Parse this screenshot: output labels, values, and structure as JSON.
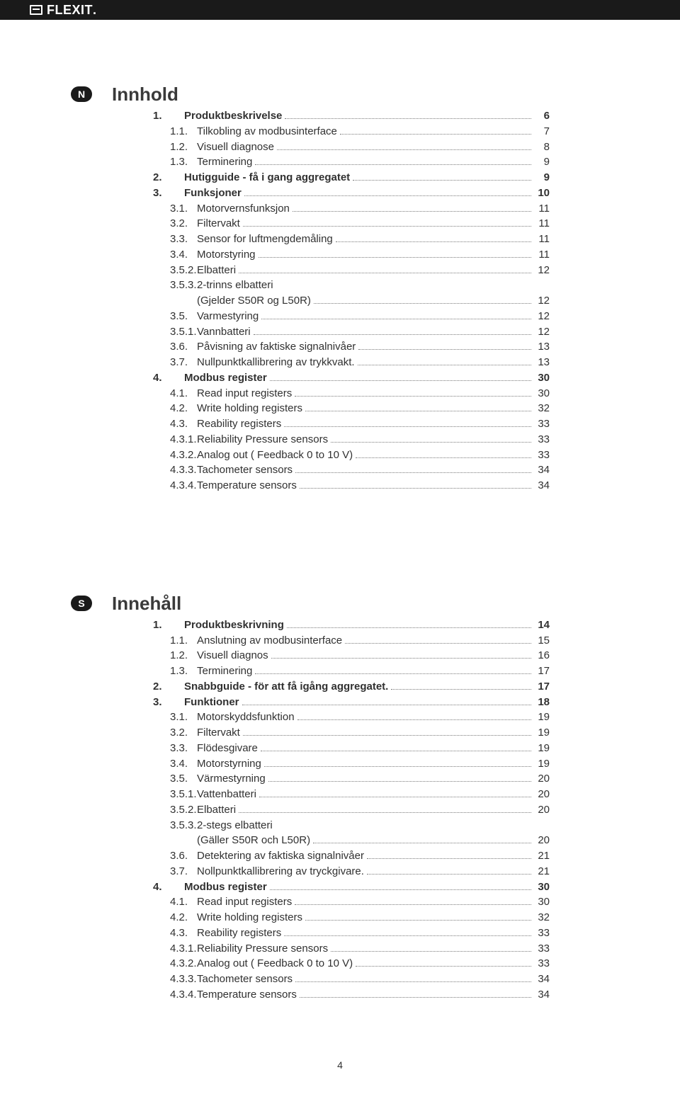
{
  "brand": "FLEXIT",
  "page_number": "4",
  "colors": {
    "bg": "#ffffff",
    "text": "#1a1a1a",
    "header_bg": "#1a1a1a",
    "header_fg": "#ffffff",
    "dot": "#7a7a7a"
  },
  "tocs": [
    {
      "badge": "N",
      "title": "Innhold",
      "entries": [
        {
          "lvl": 1,
          "num": "1.",
          "label": "Produktbeskrivelse",
          "pg": "6"
        },
        {
          "lvl": 2,
          "num": "1.1.",
          "label": "Tilkobling av modbusinterface",
          "pg": "7"
        },
        {
          "lvl": 2,
          "num": "1.2.",
          "label": "Visuell diagnose",
          "pg": "8"
        },
        {
          "lvl": 2,
          "num": "1.3.",
          "label": "Terminering",
          "pg": "9"
        },
        {
          "lvl": 1,
          "num": "2.",
          "label": "Hutigguide - få i gang aggregatet",
          "pg": "9"
        },
        {
          "lvl": 1,
          "num": "3.",
          "label": "Funksjoner",
          "pg": "10"
        },
        {
          "lvl": 2,
          "num": "3.1.",
          "label": "Motorvernsfunksjon",
          "pg": "11"
        },
        {
          "lvl": 2,
          "num": "3.2.",
          "label": "Filtervakt",
          "pg": "11"
        },
        {
          "lvl": 2,
          "num": "3.3.",
          "label": "Sensor for luftmengdemåling",
          "pg": "11"
        },
        {
          "lvl": 2,
          "num": "3.4.",
          "label": "Motorstyring",
          "pg": "11"
        },
        {
          "lvl": 2,
          "num": "3.5.2.",
          "label": "Elbatteri",
          "pg": "12"
        },
        {
          "lvl": 2,
          "num": "3.5.3.",
          "label": "2-trinns elbatteri",
          "cont": true
        },
        {
          "lvl": 2,
          "num": "",
          "label": "(Gjelder S50R og L50R)",
          "pg": "12",
          "contEnd": true
        },
        {
          "lvl": 2,
          "num": "3.5.",
          "label": "Varmestyring",
          "pg": "12"
        },
        {
          "lvl": 2,
          "num": "3.5.1.",
          "label": "Vannbatteri",
          "pg": "12"
        },
        {
          "lvl": 2,
          "num": "3.6.",
          "label": "Påvisning av faktiske signalnivåer",
          "pg": "13"
        },
        {
          "lvl": 2,
          "num": "3.7.",
          "label": "Nullpunktkallibrering av trykkvakt.",
          "pg": "13"
        },
        {
          "lvl": 1,
          "num": "4.",
          "label": "Modbus register",
          "pg": "30"
        },
        {
          "lvl": 2,
          "num": "4.1.",
          "label": "Read input registers",
          "pg": "30"
        },
        {
          "lvl": 2,
          "num": "4.2.",
          "label": "Write holding registers",
          "pg": "32"
        },
        {
          "lvl": 2,
          "num": "4.3.",
          "label": "Reability registers",
          "pg": "33"
        },
        {
          "lvl": 2,
          "num": "4.3.1.",
          "label": "Reliability Pressure sensors",
          "pg": "33"
        },
        {
          "lvl": 2,
          "num": "4.3.2.",
          "label": "Analog out ( Feedback 0 to 10 V)",
          "pg": "33"
        },
        {
          "lvl": 2,
          "num": "4.3.3.",
          "label": "Tachometer sensors",
          "pg": "34"
        },
        {
          "lvl": 2,
          "num": "4.3.4.",
          "label": "Temperature sensors",
          "pg": "34"
        }
      ]
    },
    {
      "badge": "S",
      "title": "Innehåll",
      "entries": [
        {
          "lvl": 1,
          "num": "1.",
          "label": "Produktbeskrivning",
          "pg": "14"
        },
        {
          "lvl": 2,
          "num": "1.1.",
          "label": "Anslutning av modbusinterface",
          "pg": "15"
        },
        {
          "lvl": 2,
          "num": "1.2.",
          "label": "Visuell diagnos",
          "pg": "16"
        },
        {
          "lvl": 2,
          "num": "1.3.",
          "label": "Terminering",
          "pg": "17"
        },
        {
          "lvl": 1,
          "num": "2.",
          "label": "Snabbguide - för att få igång aggregatet.",
          "pg": "17"
        },
        {
          "lvl": 1,
          "num": "3.",
          "label": "Funktioner",
          "pg": "18"
        },
        {
          "lvl": 2,
          "num": "3.1.",
          "label": "Motorskyddsfunktion",
          "pg": "19"
        },
        {
          "lvl": 2,
          "num": "3.2.",
          "label": "Filtervakt",
          "pg": "19"
        },
        {
          "lvl": 2,
          "num": "3.3.",
          "label": "Flödesgivare",
          "pg": "19"
        },
        {
          "lvl": 2,
          "num": "3.4.",
          "label": "Motorstyrning",
          "pg": "19"
        },
        {
          "lvl": 2,
          "num": "3.5.",
          "label": "Värmestyrning",
          "pg": "20"
        },
        {
          "lvl": 2,
          "num": "3.5.1.",
          "label": "Vattenbatteri",
          "pg": "20"
        },
        {
          "lvl": 2,
          "num": "3.5.2.",
          "label": "Elbatteri",
          "pg": "20"
        },
        {
          "lvl": 2,
          "num": "3.5.3.",
          "label": "2-stegs elbatteri",
          "cont": true
        },
        {
          "lvl": 2,
          "num": "",
          "label": "(Gäller S50R och L50R)",
          "pg": "20",
          "contEnd": true
        },
        {
          "lvl": 2,
          "num": "3.6.",
          "label": "Detektering av faktiska signalnivåer",
          "pg": "21"
        },
        {
          "lvl": 2,
          "num": "3.7.",
          "label": "Nollpunktkallibrering av tryckgivare.",
          "pg": "21"
        },
        {
          "lvl": 1,
          "num": "4.",
          "label": "Modbus register",
          "pg": "30"
        },
        {
          "lvl": 2,
          "num": "4.1.",
          "label": "Read input registers",
          "pg": "30"
        },
        {
          "lvl": 2,
          "num": "4.2.",
          "label": "Write holding registers",
          "pg": "32"
        },
        {
          "lvl": 2,
          "num": "4.3.",
          "label": "Reability registers",
          "pg": "33"
        },
        {
          "lvl": 2,
          "num": "4.3.1.",
          "label": "Reliability Pressure sensors",
          "pg": "33"
        },
        {
          "lvl": 2,
          "num": "4.3.2.",
          "label": "Analog out ( Feedback 0 to 10 V)",
          "pg": "33"
        },
        {
          "lvl": 2,
          "num": "4.3.3.",
          "label": "Tachometer sensors",
          "pg": "34"
        },
        {
          "lvl": 2,
          "num": "4.3.4.",
          "label": "Temperature sensors",
          "pg": "34"
        }
      ]
    }
  ]
}
